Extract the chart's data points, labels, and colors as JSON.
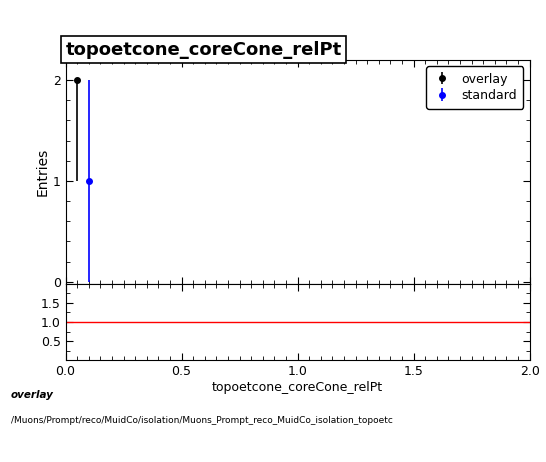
{
  "title": "topoetcone_coreCone_relPt",
  "xlabel": "topoetcone_coreCone_relPt",
  "ylabel_main": "Entries",
  "xlim": [
    0,
    2
  ],
  "ylim_main": [
    -0.02,
    2.2
  ],
  "ylim_ratio": [
    0,
    2.0
  ],
  "ratio_yticks": [
    0.5,
    1.0,
    1.5
  ],
  "overlay_x": [
    0.05
  ],
  "overlay_y": [
    2.0
  ],
  "overlay_yerr_low": [
    1.0
  ],
  "overlay_yerr_high": [
    0.0
  ],
  "standard_x": [
    0.1
  ],
  "standard_y": [
    1.0
  ],
  "standard_yerr_low": [
    1.0
  ],
  "standard_yerr_high": [
    1.0
  ],
  "overlay_color": "#000000",
  "standard_color": "#0000ff",
  "ratio_line_color": "#ff0000",
  "ratio_line_y": 1.0,
  "footer_line1": "overlay",
  "footer_line2": "/Muons/Prompt/reco/MuidCo/isolation/Muons_Prompt_reco_MuidCo_isolation_topoetc",
  "background_color": "#ffffff",
  "title_fontsize": 13,
  "axis_fontsize": 10,
  "tick_fontsize": 9,
  "legend_fontsize": 9
}
